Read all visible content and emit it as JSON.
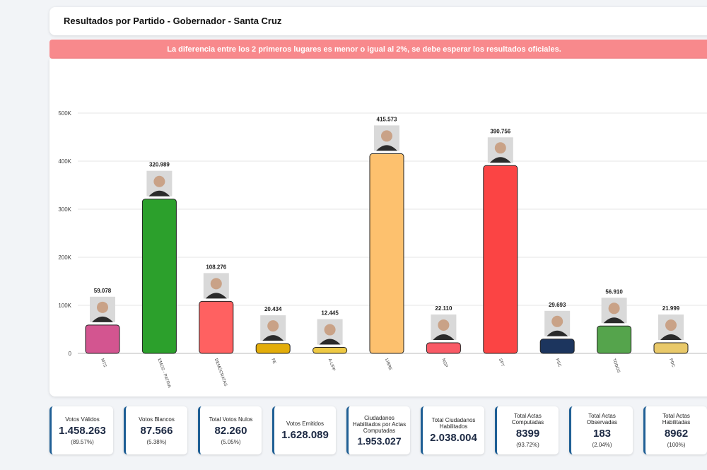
{
  "header": {
    "title": "Resultados por Partido - Gobernador - Santa Cruz"
  },
  "alert": {
    "text": "La diferencia entre los 2 primeros lugares es menor o igual al 2%, se debe esperar los resultados oficiales."
  },
  "chart_data": {
    "type": "bar",
    "title": "",
    "xlabel": "",
    "ylabel": "",
    "ylim": [
      0,
      500000
    ],
    "yticks": [
      0,
      100000,
      200000,
      300000,
      400000,
      500000
    ],
    "ytick_labels": [
      "0",
      "100K",
      "200K",
      "300K",
      "400K",
      "500K"
    ],
    "categories": [
      "MTS",
      "EMOS - PATRIA",
      "DEMÓCRATAS",
      "FE",
      "A-UPP",
      "LIBRE",
      "NGP",
      "SPT",
      "PSC",
      "TODOS",
      "PDC"
    ],
    "values": [
      59078,
      320989,
      108276,
      20434,
      12445,
      415573,
      22110,
      390756,
      29693,
      56910,
      21999
    ],
    "value_labels": [
      "59.078",
      "320.989",
      "108.276",
      "20.434",
      "12.445",
      "415.573",
      "22.110",
      "390.756",
      "29.693",
      "56.910",
      "21.999"
    ],
    "colors": [
      "#d35590",
      "#2ca02c",
      "#ff6161",
      "#e3ad0a",
      "#eec944",
      "#fdc16e",
      "#f95a66",
      "#fb4444",
      "#1c355e",
      "#55a44c",
      "#e9c96a"
    ],
    "grid": true,
    "legend": "none"
  },
  "stats": [
    {
      "label": "Votos Válidos",
      "value": "1.458.263",
      "pct": "(89.57%)"
    },
    {
      "label": "Votos Blancos",
      "value": "87.566",
      "pct": "(5.38%)"
    },
    {
      "label": "Total Votos Nulos",
      "value": "82.260",
      "pct": "(5.05%)"
    },
    {
      "label": "Votos Emitidos",
      "value": "1.628.089",
      "pct": ""
    },
    {
      "label": "Ciudadanos Habilitados por Actas Computadas",
      "value": "1.953.027",
      "pct": ""
    },
    {
      "label": "Total Ciudadanos Habilitados",
      "value": "2.038.004",
      "pct": ""
    },
    {
      "label": "Total Actas Computadas",
      "value": "8399",
      "pct": "(93.72%)"
    },
    {
      "label": "Total Actas Observadas",
      "value": "183",
      "pct": "(2.04%)"
    },
    {
      "label": "Total Actas Habilitadas",
      "value": "8962",
      "pct": "(100%)"
    }
  ]
}
